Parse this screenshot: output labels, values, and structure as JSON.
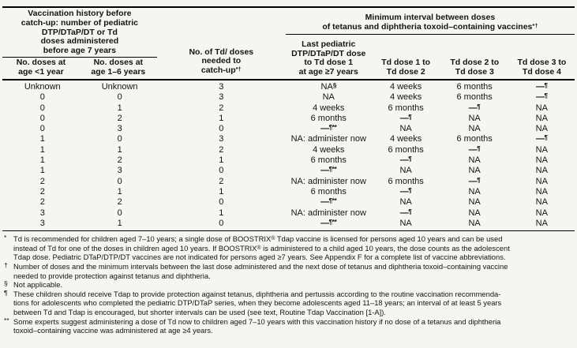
{
  "table": {
    "headers": {
      "left_group": "Vaccination history before\ncatch-up: number of pediatric\nDTP/DTaP/DT or Td\ndoses administered\nbefore age 7 years",
      "sub_doses_lt1": "No. doses at\nage <1 year",
      "sub_doses_1_6": "No. doses at\nage 1–6 years",
      "td_doses_needed": "No. of Td/ doses\nneeded to\ncatch-up{*†}",
      "right_group": "Minimum interval between doses\nof tetanus and diphtheria toxoid–containing vaccines{*†}",
      "sub_last_dose": "Last pediatric\nDTP/DTaP/DT dose\nto Td dose 1\nat age ≥7 years",
      "sub_td1_td2": "Td dose 1 to\nTd dose 2",
      "sub_td2_td3": "Td dose 2 to\nTd dose 3",
      "sub_td3_td4": "Td dose 3 to\nTd dose 4"
    },
    "rows": [
      [
        "Unknown",
        "Unknown",
        "3",
        "NA{§}",
        "4 weeks",
        "6 months",
        "—{¶}"
      ],
      [
        "0",
        "0",
        "3",
        "NA",
        "4 weeks",
        "6 months",
        "—{¶}"
      ],
      [
        "0",
        "1",
        "2",
        "4 weeks",
        "6 months",
        "—{¶}",
        "NA"
      ],
      [
        "0",
        "2",
        "1",
        "6 months",
        "—{¶}",
        "NA",
        "NA"
      ],
      [
        "0",
        "3",
        "0",
        "—{¶**}",
        "NA",
        "NA",
        "NA"
      ],
      [
        "1",
        "0",
        "3",
        "NA: administer now",
        "4 weeks",
        "6 months",
        "—{¶}"
      ],
      [
        "1",
        "1",
        "2",
        "4 weeks",
        "6 months",
        "—{¶}",
        "NA"
      ],
      [
        "1",
        "2",
        "1",
        "6 months",
        "—{¶}",
        "NA",
        "NA"
      ],
      [
        "1",
        "3",
        "0",
        "—{¶**}",
        "NA",
        "NA",
        "NA"
      ],
      [
        "2",
        "0",
        "2",
        "NA: administer now",
        "6 months",
        "—{¶}",
        "NA"
      ],
      [
        "2",
        "1",
        "1",
        "6 months",
        "—{¶}",
        "NA",
        "NA"
      ],
      [
        "2",
        "2",
        "0",
        "—{¶**}",
        "NA",
        "NA",
        "NA"
      ],
      [
        "3",
        "0",
        "1",
        "NA: administer now",
        "—{¶}",
        "NA",
        "NA"
      ],
      [
        "3",
        "1",
        "0",
        "—{¶**}",
        "NA",
        "NA",
        "NA"
      ]
    ]
  },
  "footnotes": [
    {
      "marker": "*",
      "lines": [
        "Td is recommended for children aged 7–10 years; a single dose of BOOSTRIX{®} Tdap vaccine is licensed for persons aged 10 years and can be used",
        "instead of Td for one of the doses in children aged 10 years. If BOOSTRIX{®} is administered to a child aged 10 years, the dose counts as the adolescent",
        "Tdap dose. Pediatric DTaP/DTP/DT vaccines are not indicated for persons aged ≥7 years. See Appendix F for a complete list of vaccine abbreviations."
      ]
    },
    {
      "marker": "†",
      "lines": [
        "Number of doses and the minimum intervals between the last dose administered and the next dose of tetanus and diphtheria toxoid–containing vaccine",
        "needed to provide protection against tetanus and diphtheria."
      ]
    },
    {
      "marker": "§",
      "lines": [
        "Not applicable."
      ]
    },
    {
      "marker": "¶",
      "lines": [
        "These children should receive Tdap to provide protection against tetanus, diphtheria and pertussis according to the routine vaccination recommenda-",
        "tions for adolescents who completed the pediatric DTP/DTaP series, when they become adolescents aged 11–18 years; an interval of at least 5 years",
        "between Td and Tdap is encouraged, but shorter intervals can be used (see text, Routine Tdap Vaccination [1-A])."
      ]
    },
    {
      "marker": "**",
      "lines": [
        "Some experts suggest administering a dose of Td now to children aged 7–10 years with this vaccination history if no dose of a tetanus and diphtheria",
        "toxoid–containing vaccine was administered at age ≥4 years."
      ]
    }
  ]
}
